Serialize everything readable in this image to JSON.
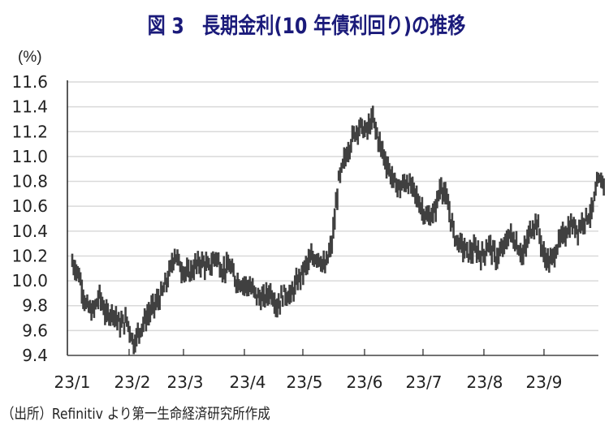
{
  "title": "図 3　長期金利(10 年債利回り)の推移",
  "unit_label": "(%)",
  "source": "（出所）Refinitiv より第一生命経済研究所作成",
  "colors": {
    "title": "#1a1a7a",
    "series": "#404040",
    "grid": "#d9d9d9",
    "axis": "#444444"
  },
  "chart_data": {
    "type": "line",
    "title": "図 3　長期金利(10 年債利回り)の推移",
    "xlabel": "",
    "ylabel": "(%)",
    "ylim": [
      9.4,
      11.6
    ],
    "yticks": [
      "11.6",
      "11.4",
      "11.2",
      "11.0",
      "10.8",
      "10.6",
      "10.4",
      "10.2",
      "10.0",
      "9.8",
      "9.6",
      "9.4"
    ],
    "xticks": [
      "23/1",
      "23/2",
      "23/3",
      "23/4",
      "23/5",
      "23/6",
      "23/7",
      "23/8",
      "23/9"
    ],
    "grid": true,
    "legend": "none",
    "series": [
      {
        "name": "10年債利回り",
        "x": [
          "23/1/3",
          "23/1/6",
          "23/1/10",
          "23/1/13",
          "23/1/17",
          "23/1/20",
          "23/1/24",
          "23/1/27",
          "23/1/31",
          "23/2/3",
          "23/2/7",
          "23/2/10",
          "23/2/14",
          "23/2/17",
          "23/2/21",
          "23/2/24",
          "23/2/28",
          "23/3/3",
          "23/3/7",
          "23/3/10",
          "23/3/14",
          "23/3/17",
          "23/3/21",
          "23/3/24",
          "23/3/28",
          "23/3/31",
          "23/4/4",
          "23/4/7",
          "23/4/11",
          "23/4/14",
          "23/4/18",
          "23/4/21",
          "23/4/25",
          "23/4/28",
          "23/5/2",
          "23/5/5",
          "23/5/9",
          "23/5/12",
          "23/5/16",
          "23/5/19",
          "23/5/23",
          "23/5/26",
          "23/5/30",
          "23/6/2",
          "23/6/6",
          "23/6/9",
          "23/6/13",
          "23/6/16",
          "23/6/20",
          "23/6/23",
          "23/6/27",
          "23/6/30",
          "23/7/4",
          "23/7/7",
          "23/7/11",
          "23/7/14",
          "23/7/18",
          "23/7/21",
          "23/7/25",
          "23/7/28",
          "23/8/1",
          "23/8/4",
          "23/8/8",
          "23/8/11",
          "23/8/15",
          "23/8/18",
          "23/8/22",
          "23/8/25",
          "23/8/29",
          "23/9/1",
          "23/9/5",
          "23/9/8",
          "23/9/12",
          "23/9/15",
          "23/9/19",
          "23/9/22",
          "23/9/26",
          "23/9/29"
        ],
        "values": [
          10.15,
          10.05,
          9.8,
          9.75,
          9.88,
          9.72,
          9.75,
          9.65,
          9.68,
          9.5,
          9.62,
          9.72,
          9.8,
          9.88,
          10.02,
          10.22,
          10.1,
          10.05,
          10.12,
          10.15,
          10.1,
          10.2,
          10.08,
          10.12,
          10.0,
          9.98,
          9.95,
          9.88,
          9.85,
          9.92,
          9.8,
          9.9,
          9.88,
          10.0,
          10.1,
          10.18,
          10.2,
          10.1,
          10.3,
          10.8,
          11.0,
          11.15,
          11.25,
          11.2,
          11.3,
          11.1,
          10.95,
          10.8,
          10.75,
          10.8,
          10.72,
          10.6,
          10.5,
          10.55,
          10.78,
          10.6,
          10.35,
          10.28,
          10.22,
          10.25,
          10.2,
          10.3,
          10.18,
          10.25,
          10.38,
          10.3,
          10.2,
          10.4,
          10.48,
          10.2,
          10.15,
          10.28,
          10.38,
          10.45,
          10.42,
          10.5,
          10.55,
          10.8
        ]
      }
    ]
  }
}
